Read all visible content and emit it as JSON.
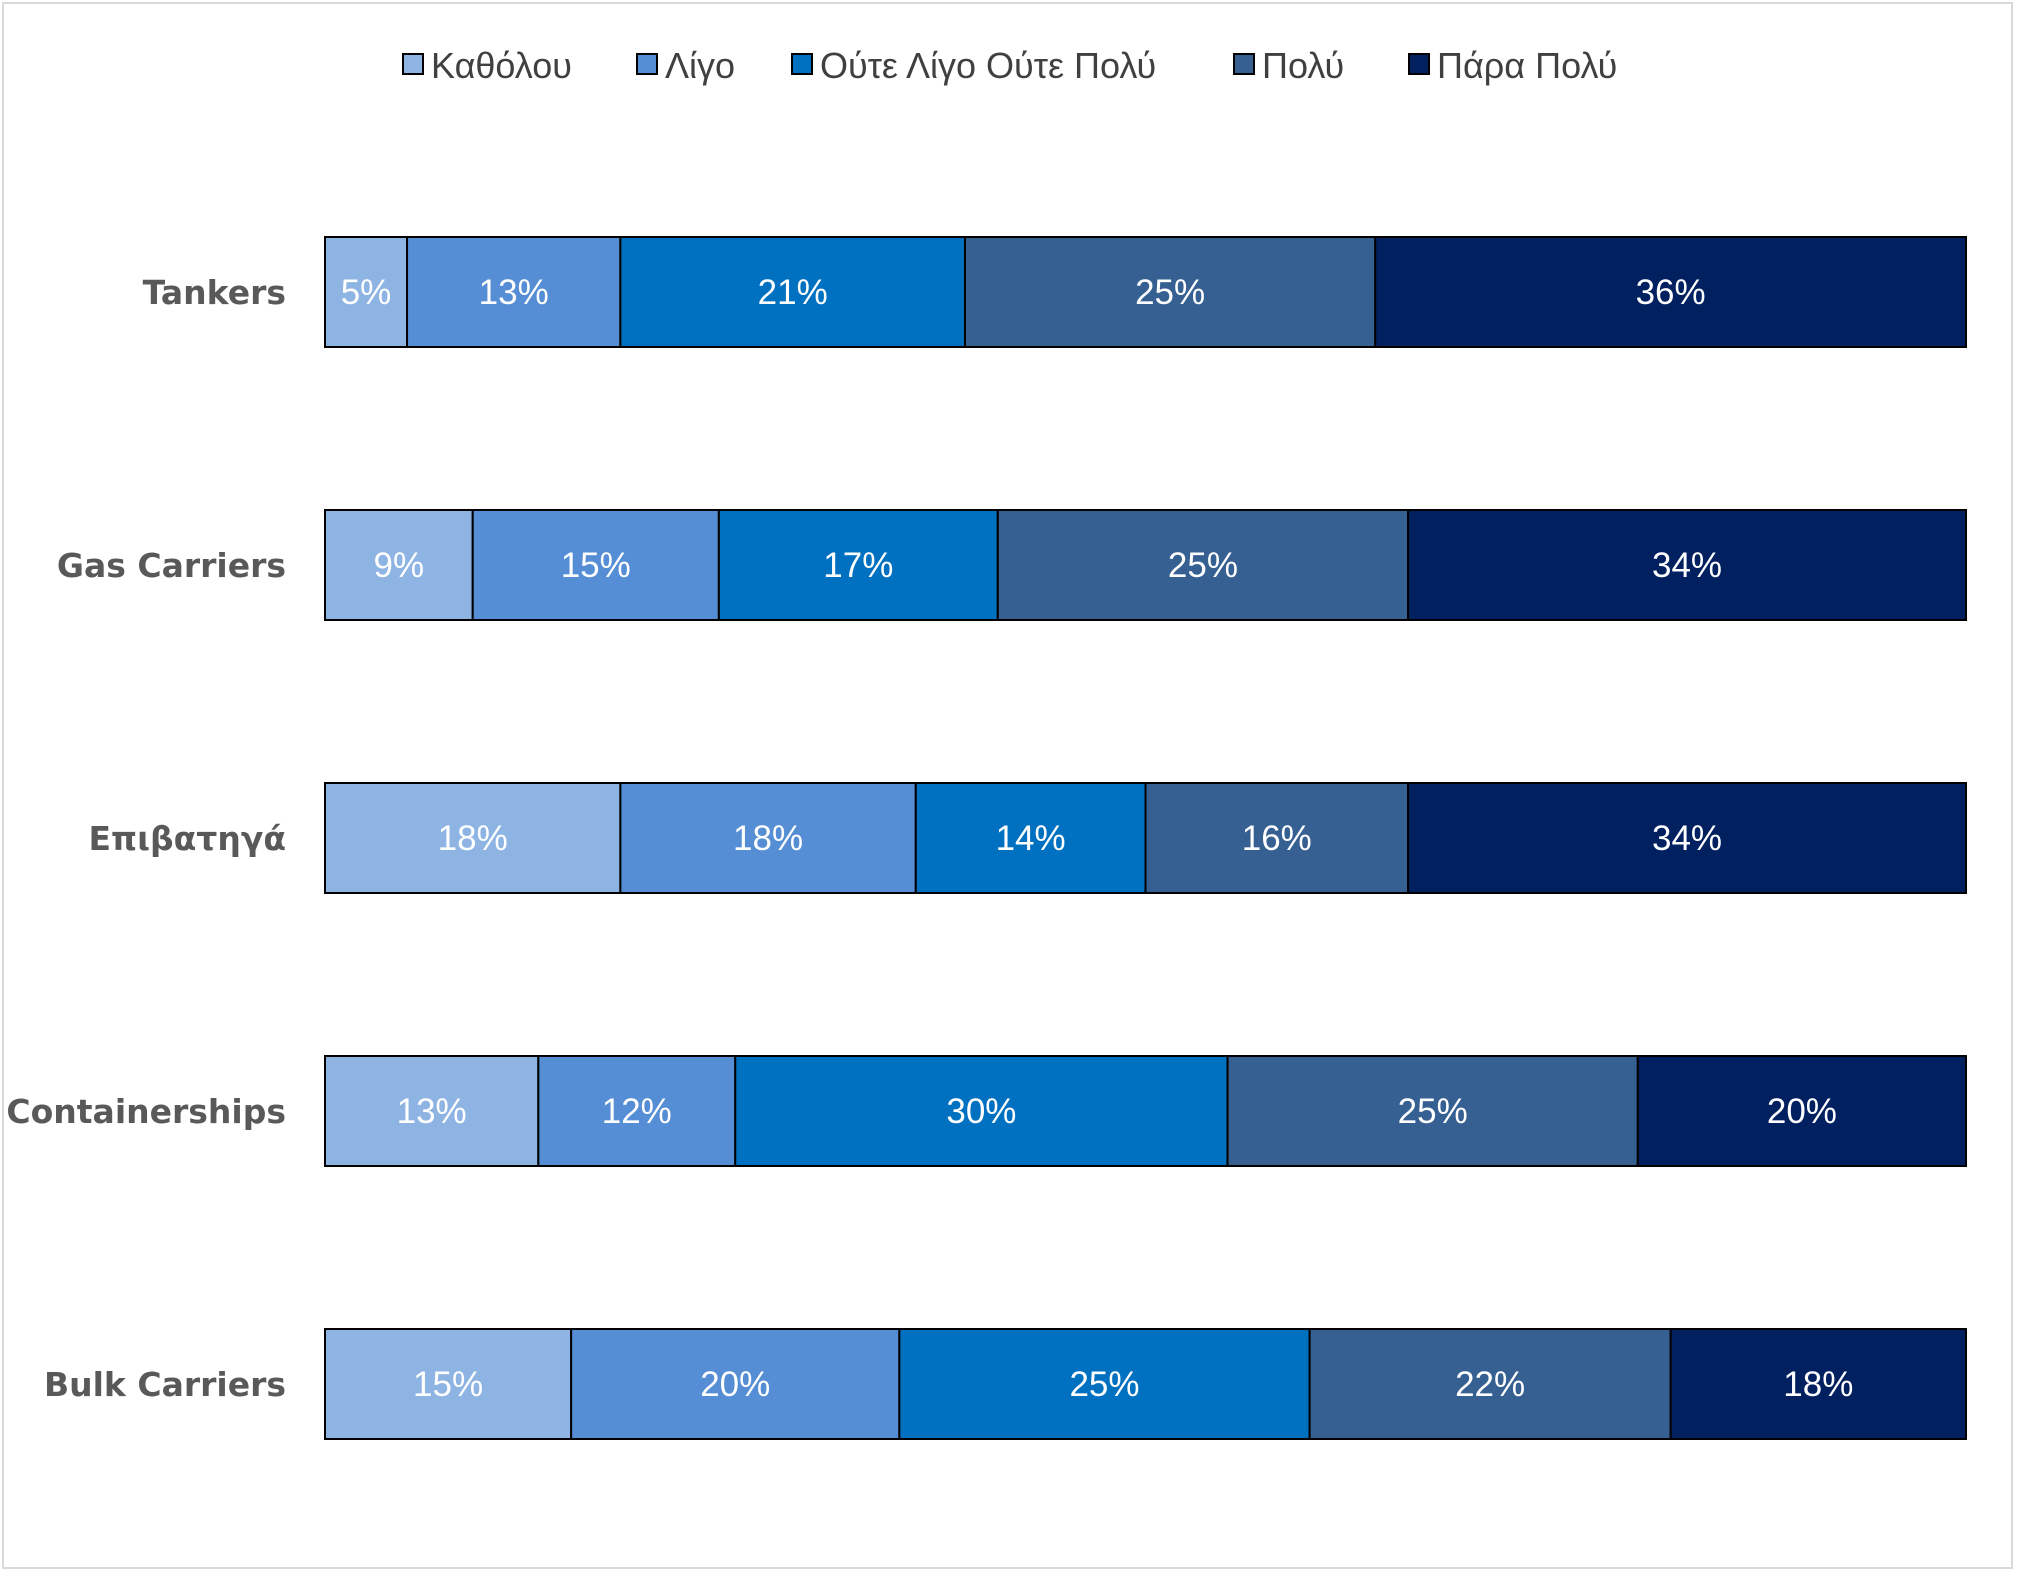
{
  "chart_data": {
    "type": "bar",
    "orientation": "horizontal",
    "stacked": "percent",
    "categories": [
      "Tankers",
      "Gas Carriers",
      "Επιβατηγά",
      "Containerships",
      "Bulk Carriers"
    ],
    "series": [
      {
        "name": "Καθόλου",
        "values": [
          5,
          9,
          18,
          13,
          15
        ],
        "color": "#8eb4e3"
      },
      {
        "name": "Λίγο",
        "values": [
          13,
          15,
          18,
          12,
          20
        ],
        "color": "#558ed5"
      },
      {
        "name": "Ούτε Λίγο Ούτε Πολύ",
        "values": [
          21,
          17,
          14,
          30,
          25
        ],
        "color": "#0070c0"
      },
      {
        "name": "Πολύ",
        "values": [
          25,
          25,
          16,
          25,
          22
        ],
        "color": "#366092"
      },
      {
        "name": "Πάρα Πολύ",
        "values": [
          36,
          34,
          34,
          20,
          18
        ],
        "color": "#002060"
      }
    ],
    "data_labels": [
      [
        "5%",
        "13%",
        "21%",
        "25%",
        "36%"
      ],
      [
        "9%",
        "15%",
        "17%",
        "25%",
        "34%"
      ],
      [
        "18%",
        "18%",
        "14%",
        "16%",
        "34%"
      ],
      [
        "13%",
        "12%",
        "30%",
        "25%",
        "20%"
      ],
      [
        "15%",
        "20%",
        "25%",
        "22%",
        "18%"
      ]
    ],
    "title": "",
    "xlabel": "",
    "ylabel": "",
    "legend": "top",
    "grid": false
  }
}
